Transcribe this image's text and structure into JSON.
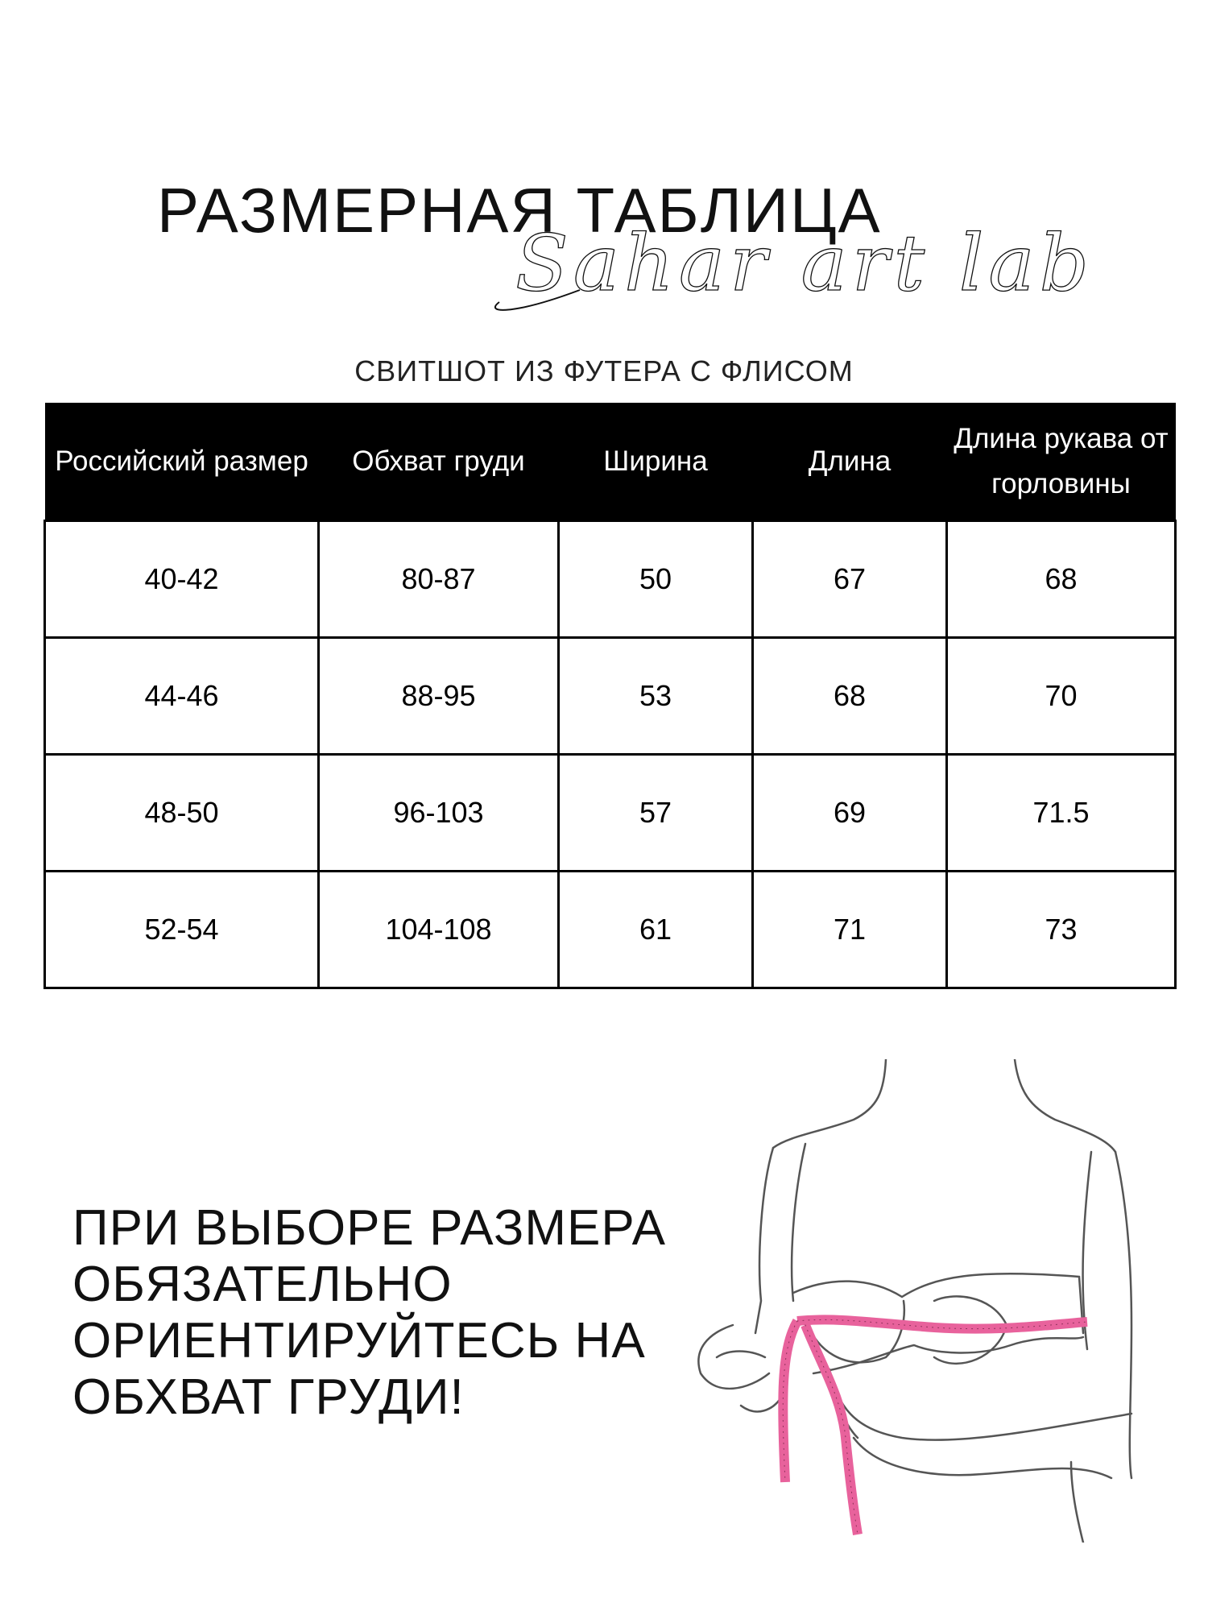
{
  "header": {
    "title": "РАЗМЕРНАЯ ТАБЛИЦА",
    "logo_text": "Sahar art lab",
    "subtitle": "СВИТШОТ ИЗ ФУТЕРА С ФЛИСОМ"
  },
  "table": {
    "columns": [
      "Российский размер",
      "Обхват груди",
      "Ширина",
      "Длина",
      "Длина рукава от горловины"
    ],
    "rows": [
      [
        "40-42",
        "80-87",
        "50",
        "67",
        "68"
      ],
      [
        "44-46",
        "88-95",
        "53",
        "68",
        "70"
      ],
      [
        "48-50",
        "96-103",
        "57",
        "69",
        "71.5"
      ],
      [
        "52-54",
        "104-108",
        "61",
        "71",
        "73"
      ]
    ]
  },
  "note": {
    "lines": [
      "ПРИ ВЫБОРЕ РАЗМЕРА",
      "ОБЯЗАТЕЛЬНО",
      "ОРИЕНТИРУЙТЕСЬ НА",
      "ОБХВАТ ГРУДИ!"
    ]
  },
  "illustration": {
    "icon": "bust-measuring-tape-illustration",
    "tape_color": "#e8629c",
    "line_color": "#555555"
  }
}
